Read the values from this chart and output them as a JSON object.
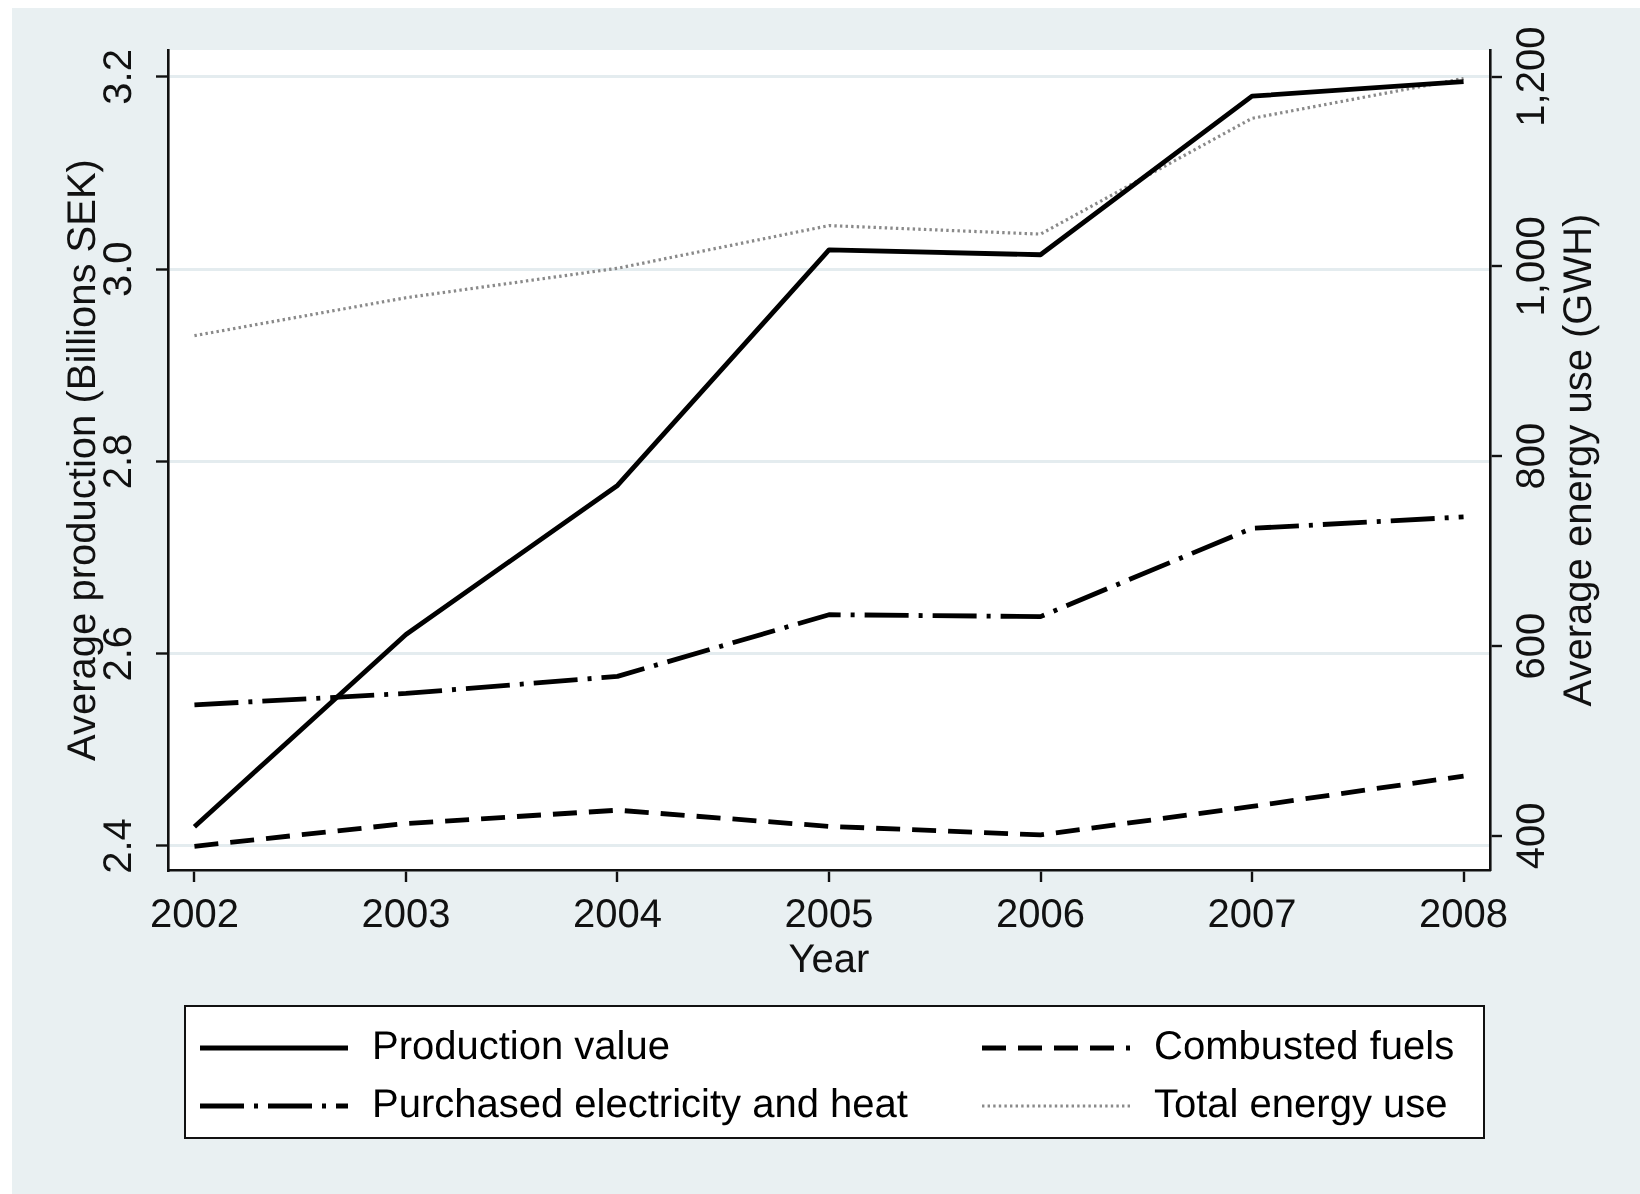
{
  "chart_data": {
    "type": "line",
    "xlabel": "Year",
    "ylabel": "Average production (Billions SEK)",
    "y2label": "Average energy use (GWH)",
    "x": [
      2002,
      2003,
      2004,
      2005,
      2006,
      2007,
      2008
    ],
    "xlim": [
      2001.875,
      2008.125
    ],
    "xticks": [
      2002,
      2003,
      2004,
      2005,
      2006,
      2007,
      2008
    ],
    "ylim": [
      2.375,
      3.228
    ],
    "yticks": [
      2.4,
      2.6,
      2.8,
      {
        "value": 3,
        "label": "3.0"
      },
      3.2
    ],
    "y2lim": [
      364,
      1228
    ],
    "y2ticks": [
      400,
      600,
      800,
      {
        "value": 1000,
        "label": "1,000"
      },
      {
        "value": 1200,
        "label": "1,200"
      }
    ],
    "series": [
      {
        "name": "Production value",
        "color": "#000000",
        "line_style": "solid",
        "values": [
          2.42,
          2.62,
          2.775,
          3.02,
          3.015,
          3.18,
          3.195
        ]
      },
      {
        "name": "Combusted fuels",
        "color": "#000000",
        "line_style": "dashed",
        "axis": "y2",
        "values": [
          389,
          413,
          427,
          410,
          401,
          431,
          463
        ]
      },
      {
        "name": "Purchased electricity and heat",
        "color": "#000000",
        "line_style": "dashdot",
        "axis": "y2",
        "values": [
          538,
          550,
          568,
          633,
          631,
          724,
          736
        ]
      },
      {
        "name": "Total energy use",
        "color": "#8a8a8a",
        "line_style": "dotted",
        "axis": "y2",
        "values": [
          927,
          967,
          998,
          1043,
          1034,
          1156,
          1198
        ]
      }
    ],
    "grid": "y",
    "legend": "bottom"
  }
}
